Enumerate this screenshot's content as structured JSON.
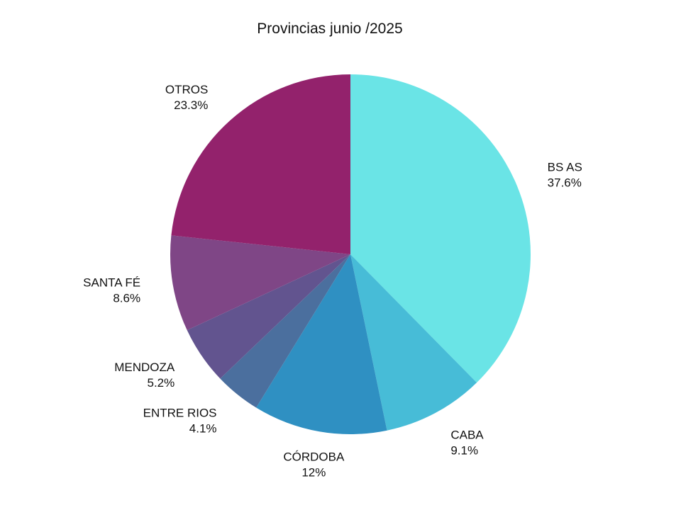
{
  "chart_data": {
    "type": "pie",
    "title": "Provincias junio /2025",
    "slices": [
      {
        "label": "BS AS",
        "value_label": "37.6%",
        "value": 37.6,
        "color": "#6ae4e6"
      },
      {
        "label": "CABA",
        "value_label": "9.1%",
        "value": 9.1,
        "color": "#47bcd7"
      },
      {
        "label": "CÓRDOBA",
        "value_label": "12%",
        "value": 12.0,
        "color": "#2f90c2"
      },
      {
        "label": "ENTRE RIOS",
        "value_label": "4.1%",
        "value": 4.1,
        "color": "#4b6f9e"
      },
      {
        "label": "MENDOZA",
        "value_label": "5.2%",
        "value": 5.2,
        "color": "#62548f"
      },
      {
        "label": "SANTA FÉ",
        "value_label": "8.6%",
        "value": 8.6,
        "color": "#7f4686"
      },
      {
        "label": "OTROS",
        "value_label": "23.3%",
        "value": 23.3,
        "color": "#93226c"
      }
    ],
    "legend": "none"
  }
}
